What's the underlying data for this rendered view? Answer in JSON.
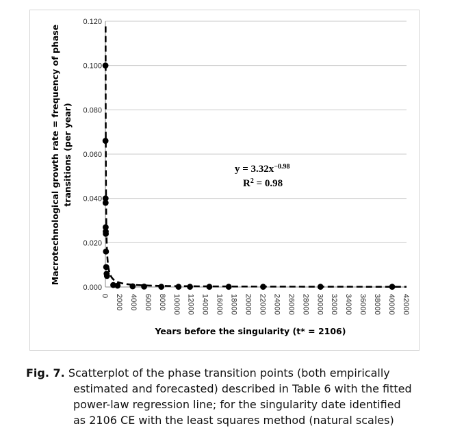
{
  "chart_data": {
    "type": "scatter",
    "xlabel": "Years before the singularity (t* = 2106)",
    "ylabel_lines": [
      "Macrotechnological growth rate = frequency of phase",
      "transitions (per year)"
    ],
    "xlim": [
      0,
      42000
    ],
    "ylim": [
      0,
      0.12
    ],
    "x_ticks": [
      "0",
      "2000",
      "4000",
      "6000",
      "8000",
      "10000",
      "12000",
      "14000",
      "16000",
      "18000",
      "20000",
      "22000",
      "24000",
      "26000",
      "28000",
      "30000",
      "32000",
      "34000",
      "36000",
      "38000",
      "40000",
      "42000"
    ],
    "y_ticks": [
      "0.000",
      "0.020",
      "0.040",
      "0.060",
      "0.080",
      "0.100",
      "0.120"
    ],
    "grid": "horizontal",
    "points": [
      {
        "x": 10,
        "y": 0.1
      },
      {
        "x": 15,
        "y": 0.066
      },
      {
        "x": 25,
        "y": 0.04
      },
      {
        "x": 30,
        "y": 0.038
      },
      {
        "x": 40,
        "y": 0.027
      },
      {
        "x": 50,
        "y": 0.025
      },
      {
        "x": 60,
        "y": 0.024
      },
      {
        "x": 80,
        "y": 0.016
      },
      {
        "x": 110,
        "y": 0.009
      },
      {
        "x": 170,
        "y": 0.006
      },
      {
        "x": 220,
        "y": 0.005
      },
      {
        "x": 1100,
        "y": 0.0009
      },
      {
        "x": 1700,
        "y": 0.0006
      },
      {
        "x": 3800,
        "y": 0.0003
      },
      {
        "x": 5400,
        "y": 0.0002
      },
      {
        "x": 7800,
        "y": 0.0001
      },
      {
        "x": 10200,
        "y": 0.0001
      },
      {
        "x": 11800,
        "y": 0.0001
      },
      {
        "x": 14500,
        "y": 0.0001
      },
      {
        "x": 17200,
        "y": 0.0001
      },
      {
        "x": 22000,
        "y": 0.0001
      },
      {
        "x": 30000,
        "y": 0.0001
      },
      {
        "x": 40000,
        "y": 0.0001
      }
    ],
    "fit": {
      "a": 3.32,
      "b": -0.98
    },
    "annotation": {
      "equation_base": "y = 3.32x",
      "equation_exp": "−0.98",
      "r2_label": "R",
      "r2_sup": "2",
      "r2_value": " = 0.98"
    },
    "colors": {
      "point": "#000000",
      "fit": "#000000",
      "grid": "#c9c9c9",
      "axis": "#888888"
    }
  },
  "caption": {
    "lead": "Fig. 7.",
    "lines": [
      " Scatterplot of the phase transition points (both empirically",
      "estimated and forecasted) described in Table 6 with the fitted",
      "power-law regression line; for the singularity date identified",
      "as 2106 CE with the least squares method (natural scales)"
    ]
  }
}
